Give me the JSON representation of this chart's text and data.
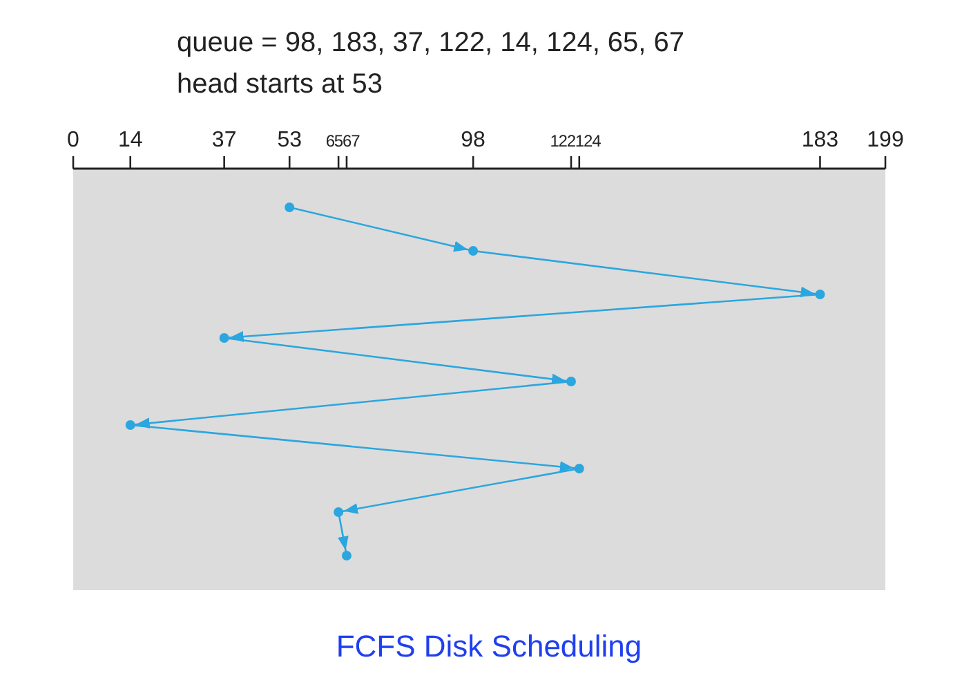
{
  "chart_data": {
    "type": "line",
    "orientation": "horizontal",
    "title": "queue = 98, 183, 37, 122, 14, 124, 65, 67",
    "subtitle": "head starts at 53",
    "annotations": [
      "FCFS Disk Scheduling"
    ],
    "categories": [
      null,
      null,
      null,
      null,
      null,
      null,
      null,
      null,
      null
    ],
    "values": [
      53,
      98,
      183,
      37,
      122,
      14,
      124,
      65,
      67
    ],
    "color": "#2ba6df",
    "marker": "circle",
    "line_style": "solid",
    "grid": false,
    "legend": false,
    "xlim": [
      0,
      199
    ],
    "xticks": [
      0,
      14,
      37,
      53,
      65,
      67,
      98,
      122,
      124,
      183,
      199
    ]
  }
}
